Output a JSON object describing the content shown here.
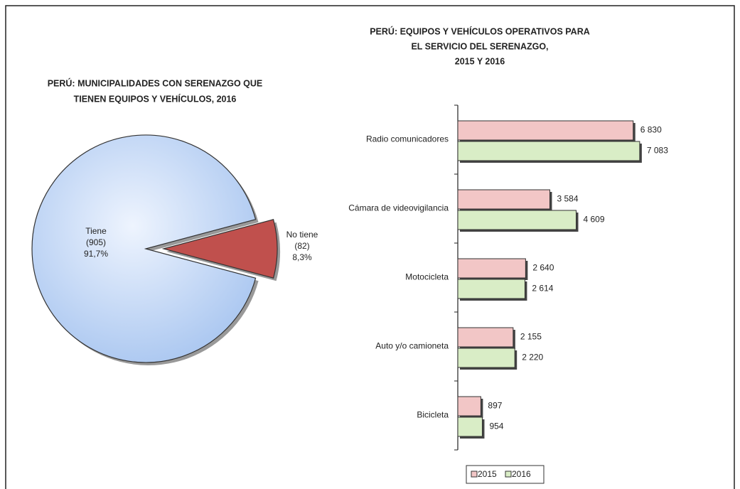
{
  "chart_data": [
    {
      "type": "pie",
      "title": [
        "PERÚ: MUNICIPALIDADES CON SERENAZGO QUE",
        "TIENEN EQUIPOS Y VEHÍCULOS, 2016"
      ],
      "categories": [
        "Tiene",
        "No tiene"
      ],
      "values": [
        91.7,
        8.3
      ],
      "value_labels": [
        "91,7%",
        "8,3%"
      ],
      "counts": [
        905,
        82
      ],
      "count_labels": [
        "(905)",
        "(82)"
      ],
      "colors": [
        "#cfe0f8",
        "#c0504d"
      ]
    },
    {
      "type": "hbar",
      "title": [
        "PERÚ: EQUIPOS Y VEHÍCULOS OPERATIVOS PARA",
        "EL SERVICIO DEL SERENAZGO,",
        "2015 Y 2016"
      ],
      "categories": [
        "Radio comunicadores",
        "Cámara de videovigilancia",
        "Motocicleta",
        "Auto y/o camioneta",
        "Bicicleta"
      ],
      "series": [
        {
          "name": "2015",
          "color": "#f2c6c6",
          "values": [
            6830,
            3584,
            2640,
            2155,
            897
          ],
          "value_labels": [
            "6 830",
            "3 584",
            "2 640",
            "2 155",
            "897"
          ]
        },
        {
          "name": "2016",
          "color": "#d9edc6",
          "values": [
            7083,
            4609,
            2614,
            2220,
            954
          ],
          "value_labels": [
            "7 083",
            "4 609",
            "2 614",
            "2 220",
            "954"
          ]
        }
      ],
      "xlim": [
        0,
        8000
      ]
    }
  ]
}
